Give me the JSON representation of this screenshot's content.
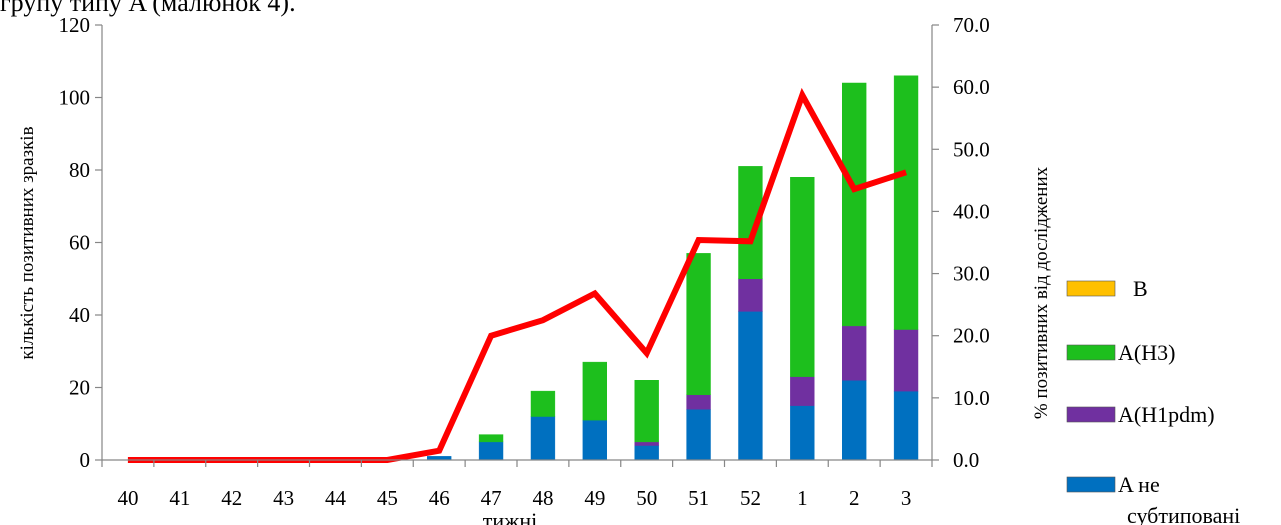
{
  "header_fragment": "групу типу A (малюнок 4).",
  "chart_data": {
    "type": "bar",
    "stacked": true,
    "categories": [
      "40",
      "41",
      "42",
      "43",
      "44",
      "45",
      "46",
      "47",
      "48",
      "49",
      "50",
      "51",
      "52",
      "1",
      "2",
      "3"
    ],
    "xlabel": "тижні",
    "ylabel": "кількість позитивних зразків",
    "y2label": "%  позитивних від  досліджених",
    "ylim": [
      0,
      120
    ],
    "yticks": [
      "0",
      "20",
      "40",
      "60",
      "80",
      "100",
      "120"
    ],
    "y2lim": [
      0,
      70
    ],
    "y2ticks": [
      "0.0",
      "10.0",
      "20.0",
      "30.0",
      "40.0",
      "50.0",
      "60.0",
      "70.0"
    ],
    "grid": false,
    "legend_position": "right",
    "series": [
      {
        "name": "A не субтиповані",
        "color": "#0070c0",
        "values": [
          0,
          0,
          0,
          0,
          0,
          0,
          1,
          5,
          12,
          11,
          4,
          14,
          41,
          15,
          22,
          19
        ]
      },
      {
        "name": "A(H1pdm)",
        "color": "#7030a0",
        "values": [
          0,
          0,
          0,
          0,
          0,
          0,
          0,
          0,
          0,
          0,
          1,
          4,
          9,
          8,
          15,
          17
        ]
      },
      {
        "name": "A(H3)",
        "color": "#1dbf1d",
        "values": [
          0,
          0,
          0,
          0,
          0,
          0,
          0,
          2,
          7,
          16,
          17,
          39,
          31,
          55,
          67,
          70
        ]
      },
      {
        "name": "B",
        "color": "#ffc000",
        "values": [
          0,
          0,
          0,
          0,
          0,
          0,
          0,
          0,
          0,
          0,
          0,
          0,
          0,
          0,
          0,
          0
        ]
      }
    ],
    "line_series": {
      "axis": "right",
      "color": "#ff0000",
      "values": [
        0,
        0,
        0,
        0,
        0,
        0,
        1.5,
        20.0,
        22.5,
        26.8,
        17.2,
        35.4,
        35.2,
        58.7,
        43.6,
        46.3
      ]
    }
  },
  "legend_items": [
    {
      "label": "B",
      "color": "#ffc000"
    },
    {
      "label": "A(H3)",
      "color": "#1dbf1d"
    },
    {
      "label": "A(H1pdm)",
      "color": "#7030a0"
    },
    {
      "label": "A не",
      "label2": "субтиповані",
      "color": "#0070c0"
    }
  ]
}
